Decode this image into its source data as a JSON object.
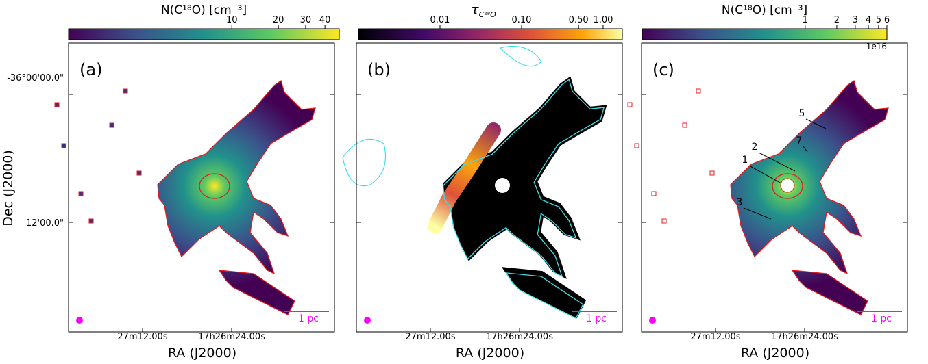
{
  "figure": {
    "y_axis_label": "Dec (J2000)",
    "yticklabels": [
      "-36°00'00.0\"",
      "12'00.0\""
    ],
    "panels": [
      {
        "label": "(a)",
        "x_axis_label": "RA (J2000)",
        "xticklabels": [
          "27m12.00s",
          "17h26m24.00s"
        ],
        "scalebar": "1 pc",
        "colorbar": {
          "title": "N(C¹⁸O) [cm⁻³]",
          "scale": "log",
          "colormap": "viridis",
          "lim": [
            0.88,
            49.5
          ],
          "ticks": [
            10,
            20,
            30,
            40
          ]
        }
      },
      {
        "label": "(b)",
        "x_axis_label": "RA (J2000)",
        "xticklabels": [
          "27m12.00s",
          "17h26m24.00s"
        ],
        "scalebar": "1 pc",
        "colorbar": {
          "symbol": "τ",
          "subscript": "C¹⁸O",
          "scale": "log",
          "colormap": "inferno",
          "lim": [
            0.001,
            1.72
          ],
          "ticks": [
            0.01,
            {
              "value": 0.1,
              "label": "0.10"
            },
            {
              "value": 0.5,
              "label": "0.50"
            },
            {
              "value": 1,
              "label": "1.00"
            }
          ]
        }
      },
      {
        "label": "(c)",
        "x_axis_label": "RA (J2000)",
        "xticklabels": [
          "27m12.00s",
          "17h26m24.00s"
        ],
        "scalebar": "1 pc",
        "sources": [
          "1",
          "2",
          "3",
          "5",
          "7"
        ],
        "colorbar": {
          "title": "N(C¹⁸O) [cm⁻³]",
          "scale": "log",
          "colormap": "viridis",
          "lim": [
            0.028,
            6
          ],
          "ticks": [
            1,
            2,
            3,
            4,
            5,
            6
          ],
          "offset": "1e16"
        }
      }
    ]
  }
}
